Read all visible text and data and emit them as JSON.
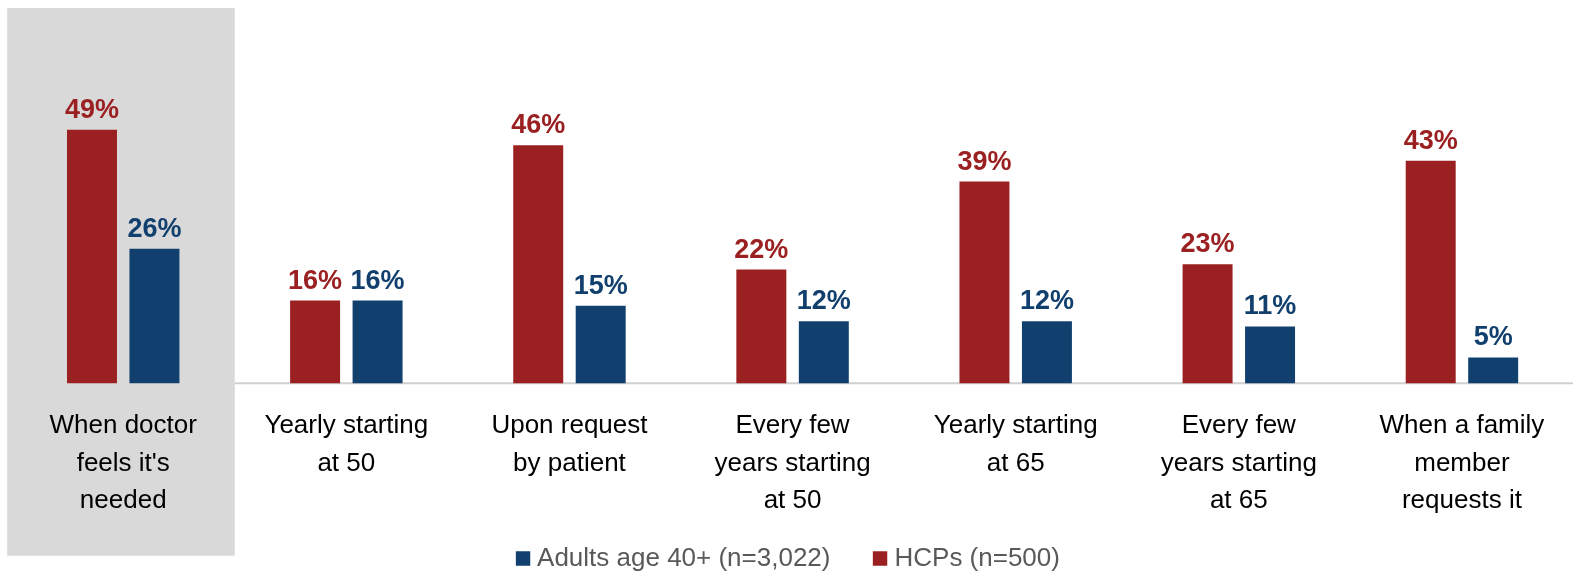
{
  "chart_data": {
    "type": "bar",
    "categories": [
      "When doctor\nfeels it's\nneeded",
      "Yearly starting\nat 50",
      "Upon request\nby patient",
      "Every few\nyears starting\nat 50",
      "Yearly starting\nat 65",
      "Every few\nyears starting\nat 65",
      "When a family\nmember\nrequests it"
    ],
    "series": [
      {
        "name": "HCPs (n=500)",
        "color": "#9b2021",
        "values": [
          49,
          16,
          46,
          22,
          39,
          23,
          43
        ],
        "value_labels": [
          "49%",
          "16%",
          "46%",
          "22%",
          "39%",
          "23%",
          "43%"
        ]
      },
      {
        "name": "Adults age 40+ (n=3,022)",
        "color": "#12406e",
        "values": [
          26,
          16,
          15,
          12,
          12,
          11,
          5
        ],
        "value_labels": [
          "26%",
          "16%",
          "15%",
          "12%",
          "12%",
          "11%",
          "5%"
        ]
      }
    ],
    "bands": [
      {
        "axis": "x",
        "from": "When doctor\nfeels it's\nneeded",
        "to": "When doctor\nfeels it's\nneeded",
        "color": "#d9d9d9"
      }
    ],
    "legend": "bottom",
    "grid": false
  }
}
